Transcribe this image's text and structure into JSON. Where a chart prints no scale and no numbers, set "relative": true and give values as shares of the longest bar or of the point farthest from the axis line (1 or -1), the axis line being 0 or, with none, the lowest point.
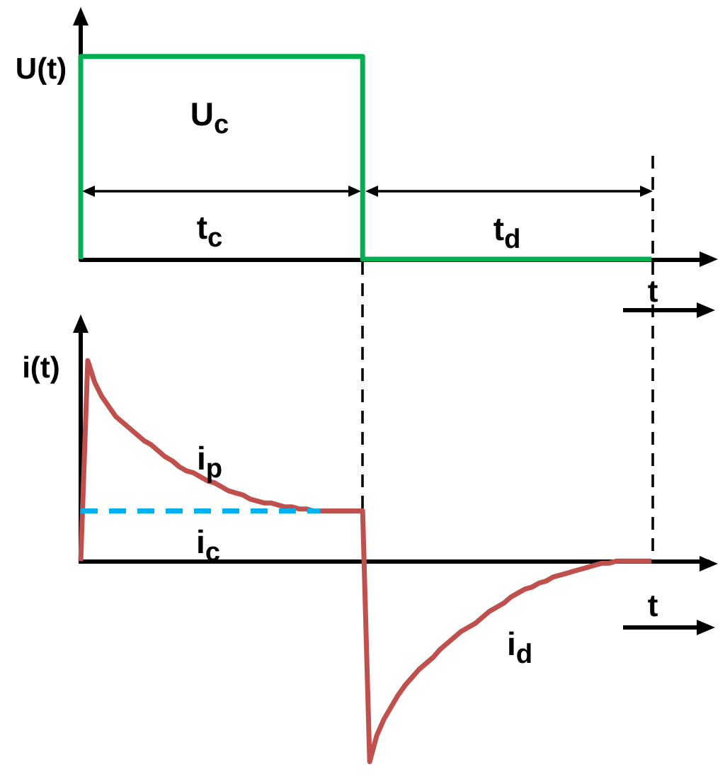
{
  "chart_data": [
    {
      "type": "step",
      "ylabel": "U(t)",
      "xlabel": "t",
      "relative": true,
      "categories": [
        null,
        null,
        null,
        null,
        null,
        null,
        null,
        null,
        null,
        null,
        null,
        null,
        null,
        null,
        null,
        null,
        null,
        null,
        null,
        null,
        null,
        null,
        null,
        null,
        null,
        null,
        null,
        null,
        null,
        null,
        null,
        null,
        null,
        null,
        null,
        null,
        null,
        null,
        null,
        null,
        null,
        null,
        null,
        null,
        null,
        null,
        null,
        null,
        null,
        null,
        null,
        null,
        null,
        null,
        null,
        null,
        null,
        null,
        null,
        null,
        null,
        null,
        null,
        null,
        null,
        null,
        null,
        null,
        null,
        null,
        null,
        null,
        null,
        null,
        null,
        null,
        null,
        null,
        null,
        null,
        null,
        null,
        null,
        null,
        null,
        null,
        null,
        null,
        null,
        null
      ],
      "series": [
        {
          "name": "U$_{c}$",
          "color": "#00b050",
          "values": [
            0,
            1,
            1,
            1,
            1,
            1,
            1,
            1,
            1,
            1,
            1,
            1,
            1,
            1,
            1,
            1,
            1,
            1,
            1,
            1,
            1,
            1,
            1,
            1,
            1,
            1,
            1,
            1,
            1,
            1,
            1,
            1,
            1,
            1,
            1,
            1,
            1,
            1,
            1,
            1,
            1,
            0,
            0,
            0,
            0,
            0,
            0,
            0,
            0,
            0,
            0,
            0,
            0,
            0,
            0,
            0,
            0,
            0,
            0,
            0,
            0,
            0,
            0,
            0,
            0,
            0,
            0,
            0,
            0,
            0,
            0,
            0,
            0,
            0,
            0,
            0,
            0,
            0,
            0,
            0,
            0,
            0,
            null,
            null,
            null,
            null,
            null,
            null,
            null,
            null
          ]
        }
      ],
      "annotations": [
        "t$_{c}$",
        "t$_{d}$"
      ]
    },
    {
      "type": "line",
      "ylabel": "i(t)",
      "xlabel": "t",
      "relative": true,
      "categories": [
        null,
        null,
        null,
        null,
        null,
        null,
        null,
        null,
        null,
        null,
        null,
        null,
        null,
        null,
        null,
        null,
        null,
        null,
        null,
        null,
        null,
        null,
        null,
        null,
        null,
        null,
        null,
        null,
        null,
        null,
        null,
        null,
        null,
        null,
        null,
        null,
        null,
        null,
        null,
        null,
        null,
        null,
        null,
        null,
        null,
        null,
        null,
        null,
        null,
        null,
        null,
        null,
        null,
        null,
        null,
        null,
        null,
        null,
        null,
        null,
        null,
        null,
        null,
        null,
        null,
        null,
        null,
        null,
        null,
        null,
        null,
        null,
        null,
        null,
        null,
        null,
        null,
        null,
        null,
        null,
        null,
        null,
        null,
        null,
        null,
        null,
        null,
        null,
        null,
        null
      ],
      "series": [
        {
          "color": "#c0504d",
          "values": [
            0,
            1,
            0.89,
            0.82,
            0.77,
            0.72,
            0.69,
            0.66,
            0.63,
            0.6,
            0.58,
            0.55,
            0.52,
            0.5,
            0.47,
            0.45,
            0.44,
            0.42,
            0.4,
            0.39,
            0.37,
            0.35,
            0.34,
            0.33,
            0.31,
            0.3,
            0.29,
            0.29,
            0.28,
            0.27,
            0.27,
            0.26,
            0.26,
            0.25,
            0.25,
            0.25,
            0.25,
            0.25,
            0.25,
            0.25,
            0.25,
            -1,
            -0.87,
            -0.79,
            -0.73,
            -0.67,
            -0.62,
            -0.58,
            -0.54,
            -0.51,
            -0.48,
            -0.44,
            -0.41,
            -0.38,
            -0.35,
            -0.33,
            -0.31,
            -0.28,
            -0.25,
            -0.23,
            -0.21,
            -0.18,
            -0.16,
            -0.14,
            -0.13,
            -0.11,
            -0.1,
            -0.08,
            -0.07,
            -0.06,
            -0.05,
            -0.04,
            -0.03,
            -0.02,
            -0.01,
            -0.01,
            0,
            0,
            0,
            0,
            0,
            0,
            null,
            null,
            null,
            null,
            null,
            null,
            null,
            null
          ]
        },
        {
          "name": "i$_{c}$",
          "color": "#00b0f0",
          "line_style": "dashed",
          "values": [
            0.25,
            0.25,
            0.25,
            0.25,
            0.25,
            0.25,
            0.25,
            0.25,
            0.25,
            0.25,
            0.25,
            0.25,
            0.25,
            0.25,
            0.25,
            0.25,
            0.25,
            0.25,
            0.25,
            0.25,
            0.25,
            0.25,
            0.25,
            0.25,
            0.25,
            0.25,
            0.25,
            0.25,
            0.25,
            0.25,
            0.25,
            0.25,
            0.25,
            0.25,
            0.25,
            null,
            null,
            null,
            null,
            null,
            null,
            null,
            null,
            null,
            null,
            null,
            null,
            null,
            null,
            null,
            null,
            null,
            null,
            null,
            null,
            null,
            null,
            null,
            null,
            null,
            null,
            null,
            null,
            null,
            null,
            null,
            null,
            null,
            null,
            null,
            null,
            null,
            null,
            null,
            null,
            null,
            null,
            null,
            null,
            null,
            null,
            null,
            null,
            null,
            null,
            null,
            null,
            null,
            null,
            null
          ]
        }
      ],
      "annotations": [
        "i$_{p}$",
        "i$_{d}$"
      ]
    }
  ]
}
